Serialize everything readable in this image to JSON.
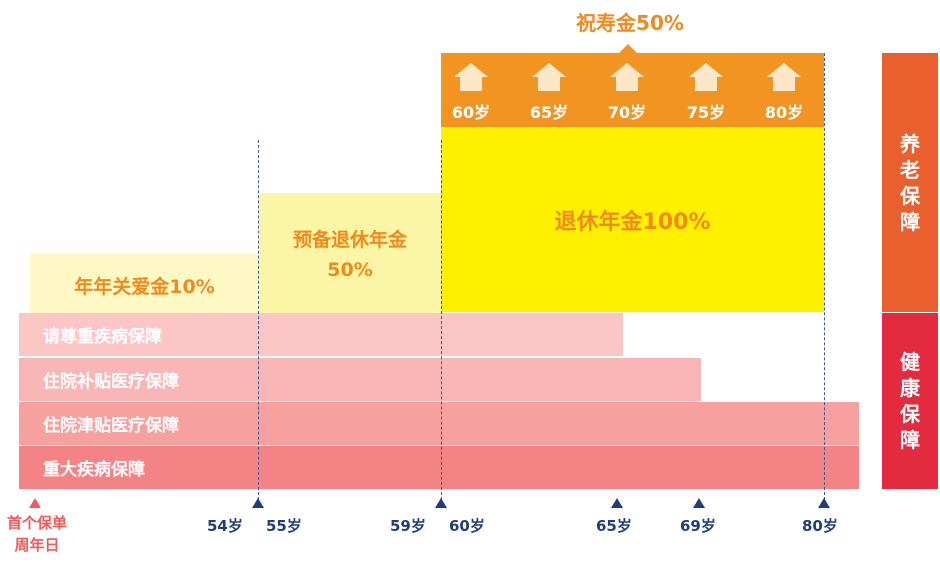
{
  "bonus": {
    "title": "祝寿金50%",
    "ages": [
      "60岁",
      "65岁",
      "70岁",
      "75岁",
      "80岁"
    ],
    "icon": "house-icon"
  },
  "retirement": {
    "full": "退休年金100%",
    "prep_line1": "预备退休年金",
    "prep_line2": "50%",
    "care": "年年关爱金10%"
  },
  "health_bars": [
    "请尊重疾病保障",
    "住院补贴医疗保障",
    "住院津贴医疗保障",
    "重大疾病保障"
  ],
  "side": {
    "pension": [
      "养",
      "老",
      "保",
      "障"
    ],
    "health": [
      "健",
      "康",
      "保",
      "障"
    ]
  },
  "axis": {
    "start_line1": "首个保单",
    "start_line2": "周年日",
    "ages": [
      "54岁",
      "55岁",
      "59岁",
      "60岁",
      "65岁",
      "69岁",
      "80岁"
    ]
  },
  "colors": {
    "bonus_band": "#f19421",
    "retire_full": "#fff000",
    "retire_prep": "#fbf5a6",
    "care": "#fdf8c4",
    "pension_side": "#e9602e",
    "health_side": "#e22b3e",
    "axis_marker": "#1f3f77"
  }
}
